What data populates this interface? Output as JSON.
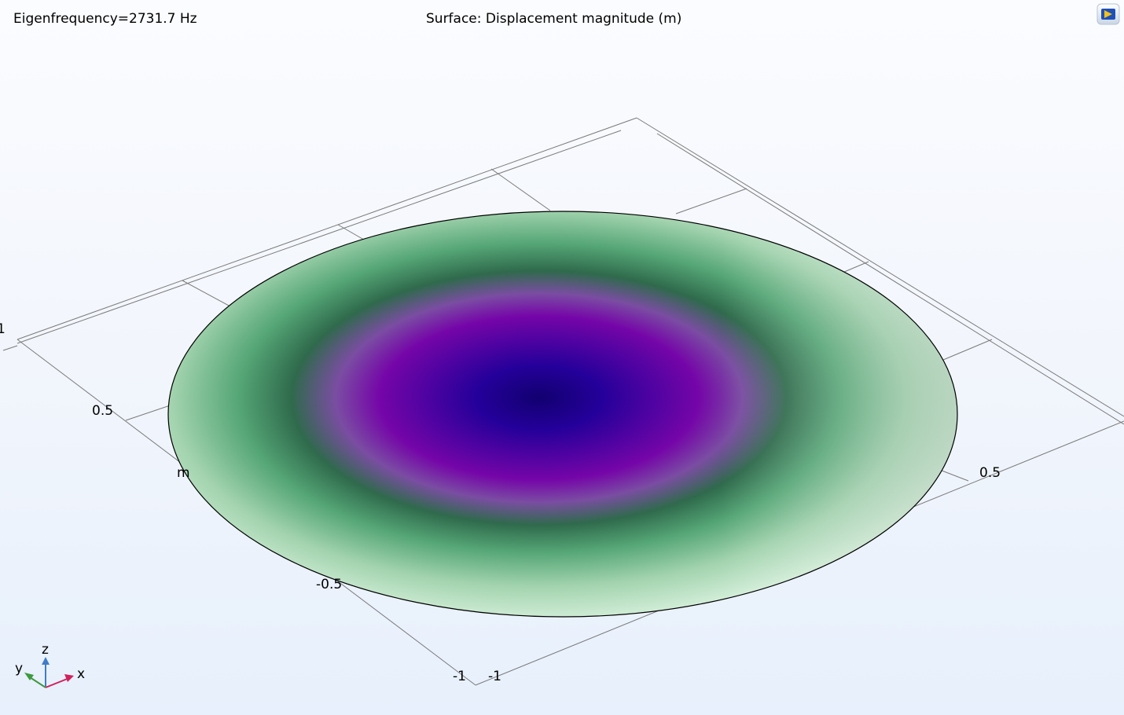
{
  "header": {
    "eigenfrequency": "Eigenfrequency=2731.7 Hz",
    "plot_title": "Surface: Displacement magnitude (m)"
  },
  "axes_ticks": {
    "top_left_one": "1",
    "y_half": "0.5",
    "y_m_partial": "m",
    "x_neg_half": "-0.5",
    "x_half": "0.5",
    "corner_neg_one_a": "-1",
    "corner_neg_one_b": "-1"
  },
  "triad": {
    "z": "z",
    "y": "y",
    "x": "x"
  },
  "colors": {
    "center": "#120070",
    "purple": "#7d06ab",
    "dark_green": "#2f6e4e",
    "mid_green": "#5aab7a",
    "pale_green": "#cdeed4",
    "outline": "#000000",
    "grid": "#7a7a7a"
  },
  "icons": {
    "logo": "comsol-logo-icon"
  }
}
